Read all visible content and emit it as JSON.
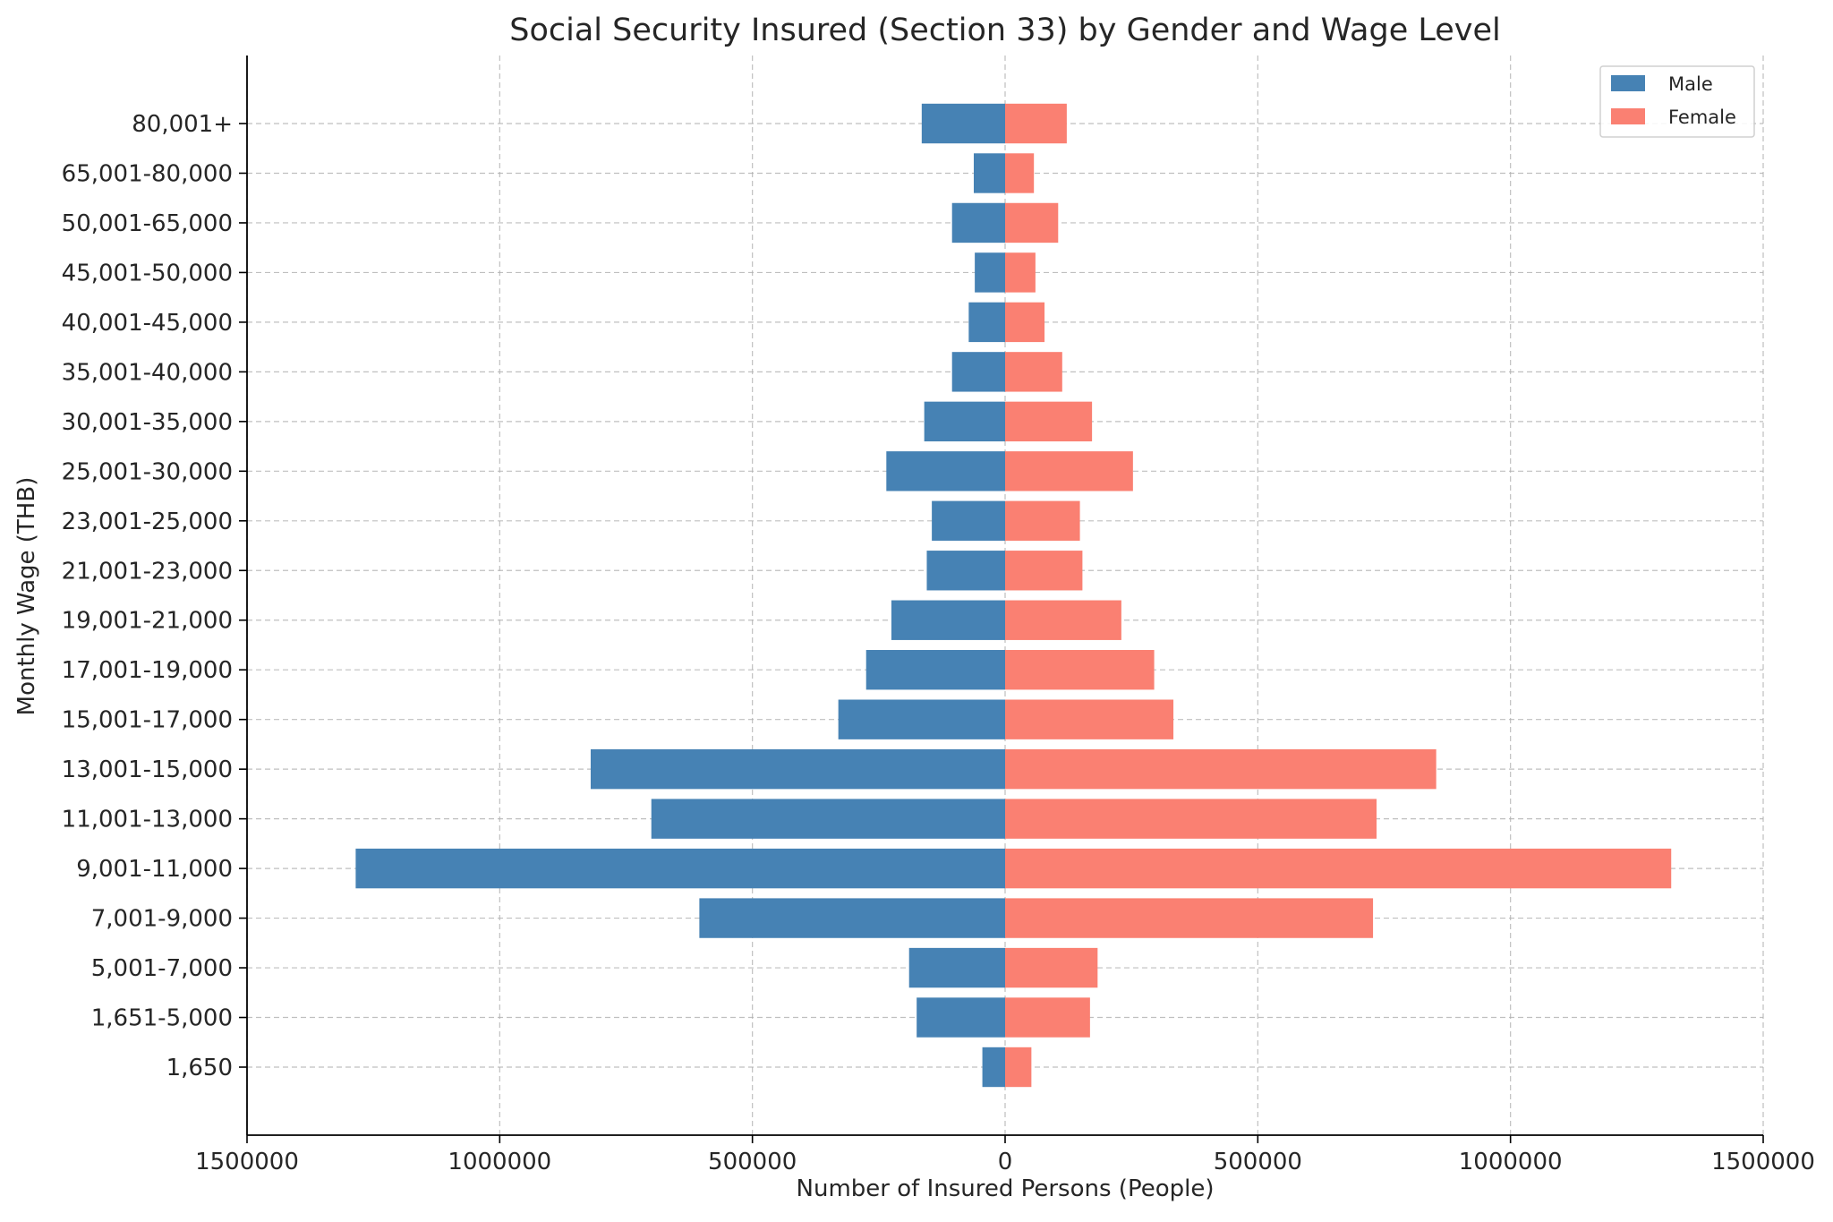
{
  "colors": {
    "male": "#4682b4",
    "female": "#fa8072"
  },
  "chart_data": {
    "type": "bar",
    "orientation": "horizontal",
    "layout": "population-pyramid",
    "title": "Social Security Insured (Section 33) by Gender and Wage Level",
    "xlabel": "Number of Insured Persons (People)",
    "ylabel": "Monthly Wage (THB)",
    "xlim": [
      -1500000,
      1500000
    ],
    "xticks": [
      -1500000,
      -1000000,
      -500000,
      0,
      500000,
      1000000,
      1500000
    ],
    "xtick_labels": [
      "1500000",
      "1000000",
      "500000",
      "0",
      "500000",
      "1000000",
      "1500000"
    ],
    "grid": true,
    "legend_position": "top-right",
    "categories": [
      "1,650",
      "1,651-5,000",
      "5,001-7,000",
      "7,001-9,000",
      "9,001-11,000",
      "11,001-13,000",
      "13,001-15,000",
      "15,001-17,000",
      "17,001-19,000",
      "19,001-21,000",
      "21,001-23,000",
      "23,001-25,000",
      "25,001-30,000",
      "30,001-35,000",
      "35,001-40,000",
      "40,001-45,000",
      "45,001-50,000",
      "50,001-65,000",
      "65,001-80,000",
      "80,001+"
    ],
    "series": [
      {
        "name": "Male",
        "color": "#4682b4",
        "values": [
          45000,
          175000,
          190000,
          605000,
          1285000,
          700000,
          820000,
          330000,
          275000,
          225000,
          155000,
          145000,
          235000,
          160000,
          105000,
          72000,
          60000,
          105000,
          62000,
          165000
        ]
      },
      {
        "name": "Female",
        "color": "#fa8072",
        "values": [
          52000,
          168000,
          183000,
          728000,
          1318000,
          735000,
          853000,
          333000,
          295000,
          230000,
          153000,
          148000,
          253000,
          172000,
          113000,
          78000,
          60000,
          105000,
          57000,
          122000
        ]
      }
    ]
  }
}
